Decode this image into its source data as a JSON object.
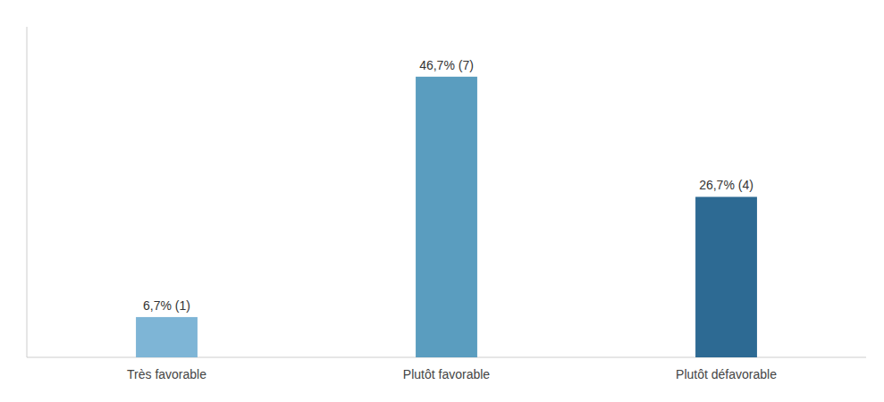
{
  "chart_data": {
    "type": "bar",
    "categories": [
      "Très favorable",
      "Plutôt favorable",
      "Plutôt défavorable"
    ],
    "values": [
      6.7,
      46.7,
      26.7
    ],
    "value_labels": [
      "6,7% (1)",
      "46,7% (7)",
      "26,7% (4)"
    ],
    "colors": [
      "#7eb5d6",
      "#5a9dbf",
      "#2d6a93"
    ],
    "ylim": [
      0,
      55
    ],
    "grid": false,
    "data_labels": true,
    "tick_labels": "x"
  }
}
